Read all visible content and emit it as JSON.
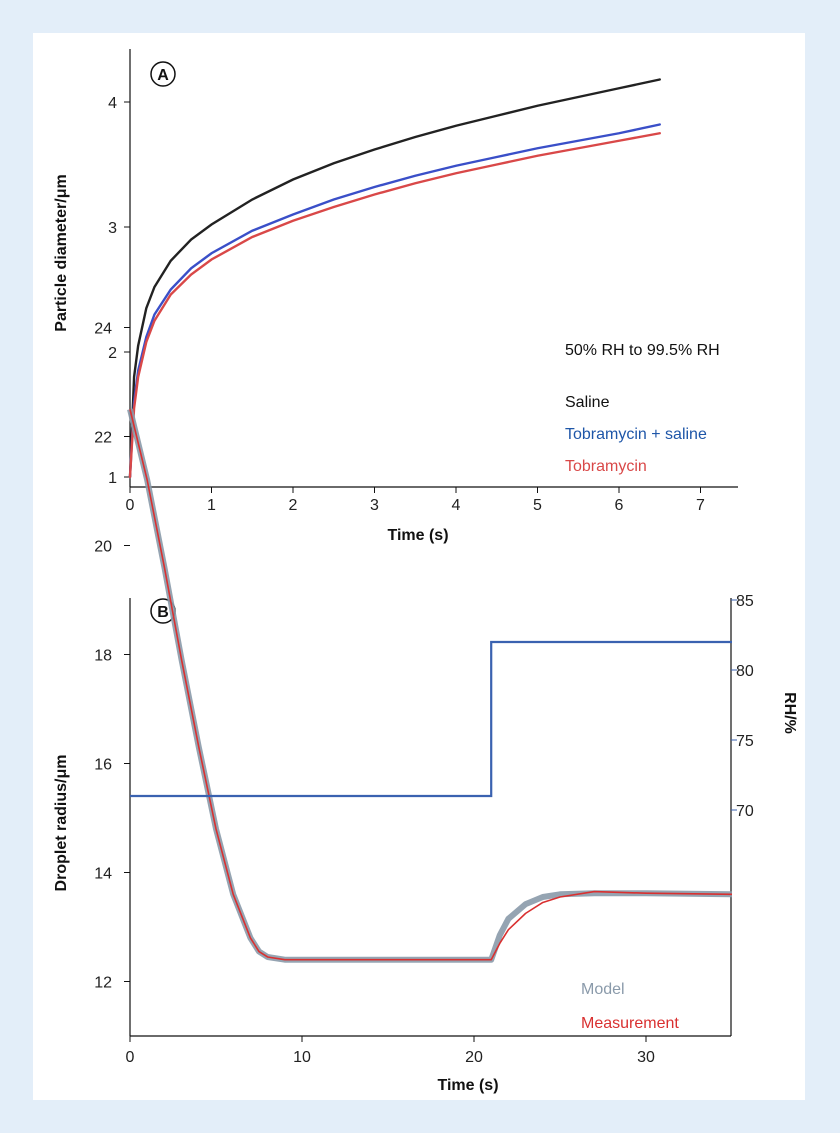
{
  "chart_data": [
    {
      "panel": "A",
      "type": "line",
      "xlabel": "Time (s)",
      "ylabel": "Particle diameter/μm",
      "xlim": [
        0,
        7
      ],
      "ylim": [
        1,
        4.4
      ],
      "xticks": [
        0,
        1,
        2,
        3,
        4,
        5,
        6,
        7
      ],
      "yticks": [
        1,
        2,
        3,
        4
      ],
      "annotation": "50% RH to 99.5% RH",
      "legend_position": "right",
      "series": [
        {
          "name": "Saline",
          "color": "#222222",
          "x": [
            0,
            0.05,
            0.1,
            0.2,
            0.3,
            0.5,
            0.75,
            1,
            1.5,
            2,
            2.5,
            3,
            3.5,
            4,
            4.5,
            5,
            5.5,
            6,
            6.5
          ],
          "y": [
            1.0,
            1.8,
            2.05,
            2.35,
            2.52,
            2.73,
            2.9,
            3.02,
            3.22,
            3.38,
            3.51,
            3.62,
            3.72,
            3.81,
            3.89,
            3.97,
            4.04,
            4.11,
            4.18
          ]
        },
        {
          "name": "Tobramycin + saline",
          "color": "#3a4fc8",
          "x": [
            0,
            0.05,
            0.1,
            0.2,
            0.3,
            0.5,
            0.75,
            1,
            1.5,
            2,
            2.5,
            3,
            3.5,
            4,
            4.5,
            5,
            5.5,
            6,
            6.5
          ],
          "y": [
            1.0,
            1.6,
            1.85,
            2.12,
            2.3,
            2.5,
            2.67,
            2.79,
            2.97,
            3.1,
            3.22,
            3.32,
            3.41,
            3.49,
            3.56,
            3.63,
            3.69,
            3.75,
            3.82
          ]
        },
        {
          "name": "Tobramycin",
          "color": "#d94848",
          "x": [
            0,
            0.05,
            0.1,
            0.2,
            0.3,
            0.5,
            0.75,
            1,
            1.5,
            2,
            2.5,
            3,
            3.5,
            4,
            4.5,
            5,
            5.5,
            6,
            6.5
          ],
          "y": [
            1.0,
            1.55,
            1.8,
            2.08,
            2.25,
            2.46,
            2.62,
            2.74,
            2.92,
            3.05,
            3.16,
            3.26,
            3.35,
            3.43,
            3.5,
            3.57,
            3.63,
            3.69,
            3.75
          ]
        }
      ]
    },
    {
      "panel": "B",
      "type": "line",
      "xlabel": "Time (s)",
      "ylabel": "Droplet radius/μm",
      "y2label": "RH/%",
      "xlim": [
        0,
        35
      ],
      "ylim": [
        11,
        24
      ],
      "y2lim": [
        64,
        86
      ],
      "xticks": [
        0,
        10,
        20,
        30
      ],
      "yticks": [
        12,
        14,
        16,
        18,
        20,
        22,
        24
      ],
      "y2ticks": [
        70,
        75,
        80,
        85
      ],
      "legend_position": "bottom-right",
      "series": [
        {
          "name": "Model",
          "color": "#8a9aaa",
          "axis": "left",
          "x": [
            0,
            1,
            2,
            3,
            4,
            5,
            6,
            7,
            7.5,
            8,
            9,
            10,
            15,
            20,
            21,
            21.5,
            22,
            23,
            24,
            25,
            27,
            30,
            35
          ],
          "y": [
            22.5,
            21.2,
            19.6,
            17.9,
            16.3,
            14.8,
            13.6,
            12.8,
            12.55,
            12.45,
            12.4,
            12.4,
            12.4,
            12.4,
            12.4,
            12.85,
            13.15,
            13.42,
            13.55,
            13.6,
            13.62,
            13.62,
            13.6
          ]
        },
        {
          "name": "Measurement",
          "color": "#d93030",
          "axis": "left",
          "x": [
            0,
            1,
            2,
            3,
            4,
            5,
            6,
            7,
            7.5,
            8,
            9,
            10,
            15,
            20,
            21,
            21.5,
            22,
            23,
            24,
            25,
            27,
            30,
            35
          ],
          "y": [
            22.5,
            21.2,
            19.6,
            17.9,
            16.3,
            14.8,
            13.6,
            12.8,
            12.55,
            12.45,
            12.4,
            12.4,
            12.4,
            12.4,
            12.4,
            12.7,
            12.95,
            13.25,
            13.45,
            13.55,
            13.65,
            13.62,
            13.6
          ]
        },
        {
          "name": "RH",
          "color": "#3a62b0",
          "axis": "right",
          "x": [
            0,
            21,
            21,
            35
          ],
          "y": [
            71,
            71,
            82,
            82
          ]
        }
      ]
    }
  ]
}
